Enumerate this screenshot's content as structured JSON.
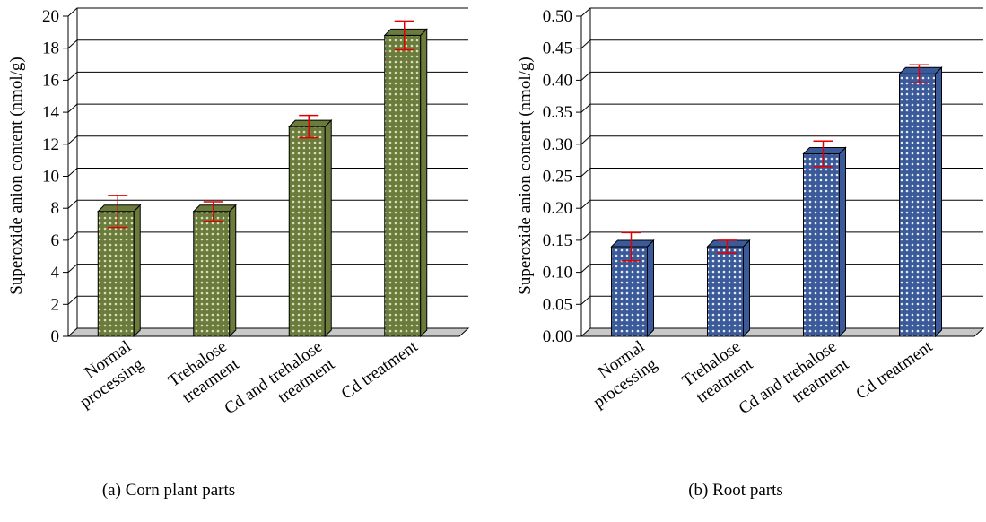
{
  "chart_data": [
    {
      "type": "bar",
      "caption": "(a) Corn plant parts",
      "ylabel": "Superoxide anion content (nmol/g)",
      "categories": [
        "Normal processing",
        "Trehalose treatment",
        "Cd and trehalose treatment",
        "Cd treatment"
      ],
      "values": [
        7.8,
        7.8,
        13.1,
        18.8
      ],
      "errors": [
        1.0,
        0.6,
        0.7,
        0.9
      ],
      "color": "#6b7b3c",
      "error_color": "#e00000",
      "ylim": [
        0,
        20
      ],
      "yticks": [
        0,
        2,
        4,
        6,
        8,
        10,
        12,
        14,
        16,
        18,
        20
      ],
      "grid": true
    },
    {
      "type": "bar",
      "caption": "(b) Root parts",
      "ylabel": "Superoxide anion content (nmol/g)",
      "categories": [
        "Normal processing",
        "Trehalose treatment",
        "Cd and trehalose treatment",
        "Cd treatment"
      ],
      "values": [
        0.14,
        0.14,
        0.285,
        0.41
      ],
      "errors": [
        0.022,
        0.01,
        0.02,
        0.014
      ],
      "color": "#3b5a9a",
      "error_color": "#e00000",
      "ylim": [
        0,
        0.5
      ],
      "yticks": [
        {
          "value": 0,
          "label": "0.00"
        },
        0.05,
        {
          "value": 0.1,
          "label": "0.10"
        },
        0.15,
        {
          "value": 0.2,
          "label": "0.20"
        },
        0.25,
        {
          "value": 0.3,
          "label": "0.30"
        },
        0.35,
        {
          "value": 0.4,
          "label": "0.40"
        },
        0.45,
        {
          "value": 0.5,
          "label": "0.50"
        }
      ],
      "grid": true
    }
  ]
}
